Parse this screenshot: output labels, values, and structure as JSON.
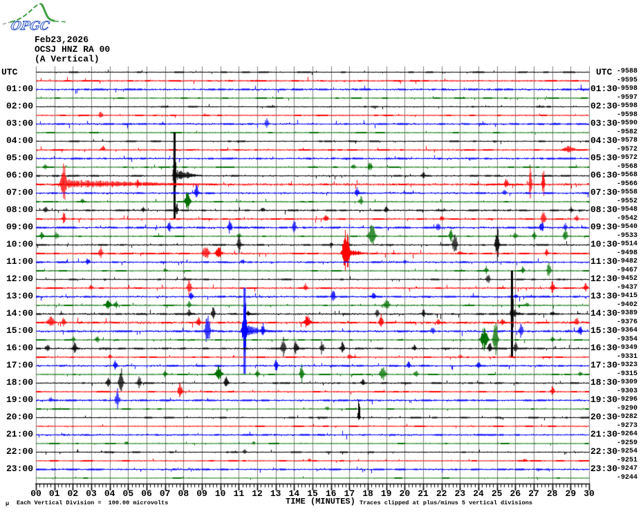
{
  "header": {
    "logo_text": "OPGC",
    "date": "Feb23,2026",
    "station": "OCSJ HNZ RA 00",
    "component": "(A Vertical)"
  },
  "axes": {
    "left_title": "UTC",
    "right_title": "UTC",
    "left_hour_labels": [
      "01:00",
      "02:00",
      "03:00",
      "04:00",
      "05:00",
      "06:00",
      "07:00",
      "08:00",
      "09:00",
      "10:00",
      "11:00",
      "12:00",
      "13:00",
      "14:00",
      "15:00",
      "16:00",
      "17:00",
      "18:00",
      "19:00",
      "20:00",
      "21:00",
      "22:00",
      "23:00"
    ],
    "right_hour_labels": [
      "01:30",
      "02:30",
      "03:30",
      "04:30",
      "05:30",
      "06:30",
      "07:30",
      "08:30",
      "09:30",
      "10:30",
      "11:30",
      "12:30",
      "13:30",
      "14:30",
      "15:30",
      "16:30",
      "17:30",
      "18:30",
      "19:30",
      "20:30",
      "21:30",
      "22:30",
      "23:30"
    ],
    "right_numbers": [
      "-9588",
      "-9595",
      "-9598",
      "-9597",
      "-9598",
      "-9598",
      "-9590",
      "-9582",
      "-9578",
      "-9572",
      "-9572",
      "-9568",
      "-9568",
      "-9566",
      "-9558",
      "-9552",
      "-9548",
      "-9542",
      "-9540",
      "-9533",
      "-9514",
      "-9498",
      "-9482",
      "-9467",
      "-9452",
      "-9437",
      "-9415",
      "-9402",
      "-9389",
      "-9376",
      "-9364",
      "-9354",
      "-9349",
      "-9331",
      "-9323",
      "-9315",
      "-9309",
      "-9303",
      "-9296",
      "-9290",
      "-9282",
      "-9273",
      "-9264",
      "-9259",
      "-9254",
      "-9251",
      "-9247",
      "-9244"
    ],
    "minute_labels": [
      "00",
      "01",
      "02",
      "03",
      "04",
      "05",
      "06",
      "07",
      "08",
      "09",
      "10",
      "11",
      "12",
      "13",
      "14",
      "15",
      "16",
      "17",
      "18",
      "19",
      "20",
      "21",
      "22",
      "23",
      "24",
      "25",
      "26",
      "27",
      "28",
      "29",
      "30"
    ]
  },
  "footer": {
    "micro_mark": "μ",
    "scale_note": "Each Vertical Division =  100.00 microvolts",
    "axis_title": "TIME (MINUTES)",
    "clip_note": "Traces clipped at plus/minus 5 vertical divisions"
  },
  "colors": {
    "black": "#000000",
    "red": "#ff0000",
    "blue": "#0000ff",
    "green": "#007000",
    "grid": "#7f7f7f",
    "background": "#ffffff",
    "logo_green": "#3f9e3f",
    "logo_blue": "#2a50c0"
  },
  "chart_data": {
    "type": "line",
    "title": "24-hour helicorder seismogram, 48 half-hour traces",
    "xlabel": "TIME (MINUTES)",
    "x_range": [
      0,
      30
    ],
    "grid": true,
    "traces_per_hour": 2,
    "color_cycle": [
      "black",
      "red",
      "blue",
      "green"
    ],
    "clip_divisions": 5,
    "microvolts_per_division": 100,
    "event_format": "[minute, amplitude_divisions (neg = upward spike), cluster_halfwidth_min, coda_min]",
    "rows": [
      {
        "start": "00:00",
        "end": "00:30",
        "color": "black",
        "noise": 0.9,
        "events": []
      },
      {
        "start": "00:30",
        "end": "01:00",
        "color": "red",
        "noise": 1.3,
        "events": []
      },
      {
        "start": "01:00",
        "end": "01:30",
        "color": "blue",
        "noise": 1.6,
        "events": []
      },
      {
        "start": "01:30",
        "end": "02:00",
        "color": "green",
        "noise": 0.9,
        "events": []
      },
      {
        "start": "02:00",
        "end": "02:30",
        "color": "black",
        "noise": 1.0,
        "events": []
      },
      {
        "start": "02:30",
        "end": "03:00",
        "color": "red",
        "noise": 1.0,
        "events": [
          [
            3.5,
            0.5
          ]
        ]
      },
      {
        "start": "03:00",
        "end": "03:30",
        "color": "blue",
        "noise": 1.5,
        "events": [
          [
            12.5,
            0.7
          ]
        ]
      },
      {
        "start": "03:30",
        "end": "04:00",
        "color": "green",
        "noise": 0.8,
        "events": []
      },
      {
        "start": "04:00",
        "end": "04:30",
        "color": "black",
        "noise": 1.0,
        "events": []
      },
      {
        "start": "04:30",
        "end": "05:00",
        "color": "red",
        "noise": 1.3,
        "events": [
          [
            3.6,
            -0.55
          ],
          [
            28.9,
            0.55,
            0.5
          ]
        ]
      },
      {
        "start": "05:00",
        "end": "05:30",
        "color": "blue",
        "noise": 1.5,
        "events": []
      },
      {
        "start": "05:30",
        "end": "06:00",
        "color": "green",
        "noise": 0.9,
        "events": [
          [
            0.5,
            0.4
          ],
          [
            7.5,
            0.3
          ],
          [
            17.2,
            0.4
          ],
          [
            18.1,
            0.65
          ]
        ]
      },
      {
        "start": "06:00",
        "end": "06:30",
        "color": "black",
        "noise": 1.2,
        "events": [
          [
            7.5,
            5,
            0.12,
            1.5
          ],
          [
            21,
            0.5
          ]
        ]
      },
      {
        "start": "06:30",
        "end": "07:00",
        "color": "red",
        "noise": 1.8,
        "events": [
          [
            1.5,
            3.6,
            0.25,
            8
          ],
          [
            5.5,
            0.55
          ],
          [
            25.5,
            0.7
          ],
          [
            26.8,
            2.1,
            0.12
          ],
          [
            27.5,
            2.1,
            0.12
          ]
        ]
      },
      {
        "start": "07:00",
        "end": "07:30",
        "color": "blue",
        "noise": 1.6,
        "events": [
          [
            8.7,
            1.0
          ],
          [
            17.4,
            0.65
          ],
          [
            25.4,
            0.55
          ]
        ]
      },
      {
        "start": "07:30",
        "end": "08:00",
        "color": "green",
        "noise": 1.0,
        "events": [
          [
            2.5,
            0.4
          ],
          [
            8.2,
            1.2,
            0.25
          ],
          [
            17.6,
            0.7
          ]
        ]
      },
      {
        "start": "08:00",
        "end": "08:30",
        "color": "black",
        "noise": 1.3,
        "events": [
          [
            0.5,
            0.65
          ],
          [
            5.8,
            0.4
          ],
          [
            7.6,
            1.0
          ],
          [
            12.3,
            0.4
          ],
          [
            19,
            0.5
          ],
          [
            29,
            0.4
          ]
        ]
      },
      {
        "start": "08:30",
        "end": "09:00",
        "color": "red",
        "noise": 1.4,
        "events": [
          [
            1.5,
            0.8
          ],
          [
            15.7,
            0.65
          ],
          [
            22,
            0.4
          ],
          [
            27.5,
            1.3
          ],
          [
            29.3,
            0.5
          ]
        ]
      },
      {
        "start": "09:00",
        "end": "09:30",
        "color": "blue",
        "noise": 1.7,
        "events": [
          [
            7.2,
            0.8
          ],
          [
            10.5,
            1.0
          ],
          [
            14,
            0.8
          ],
          [
            21.8,
            0.7
          ],
          [
            27.4,
            1.0
          ],
          [
            28.7,
            0.55
          ]
        ]
      },
      {
        "start": "09:30",
        "end": "10:00",
        "color": "green",
        "noise": 1.0,
        "events": [
          [
            0.3,
            0.5
          ],
          [
            1.1,
            0.55
          ],
          [
            11,
            0.4
          ],
          [
            18.2,
            1.9,
            0.3
          ],
          [
            22.5,
            0.8
          ],
          [
            26,
            0.55
          ],
          [
            27,
            0.55
          ],
          [
            28.7,
            0.9
          ]
        ]
      },
      {
        "start": "10:00",
        "end": "10:30",
        "color": "black",
        "noise": 1.3,
        "events": [
          [
            11,
            1.1
          ],
          [
            16,
            0.3
          ],
          [
            22.7,
            1.9
          ],
          [
            25,
            2.2
          ]
        ]
      },
      {
        "start": "10:30",
        "end": "11:00",
        "color": "red",
        "noise": 1.5,
        "events": [
          [
            3.5,
            0.8
          ],
          [
            9.2,
            1.0,
            0.3
          ],
          [
            9.9,
            1.0,
            0.3
          ],
          [
            16.8,
            3.8,
            0.3,
            1.2
          ],
          [
            23,
            0.4
          ],
          [
            27.7,
            0.6
          ]
        ]
      },
      {
        "start": "11:00",
        "end": "11:30",
        "color": "blue",
        "noise": 1.5,
        "events": [
          [
            2.8,
            0.55
          ],
          [
            11.2,
            0.4
          ],
          [
            20,
            0.3
          ]
        ]
      },
      {
        "start": "11:30",
        "end": "12:00",
        "color": "green",
        "noise": 0.9,
        "events": [
          [
            7,
            0.3
          ],
          [
            24.4,
            0.65
          ],
          [
            26.4,
            0.5
          ],
          [
            27.8,
            1.0
          ]
        ]
      },
      {
        "start": "12:00",
        "end": "12:30",
        "color": "black",
        "noise": 1.1,
        "events": [
          [
            24.5,
            0.7
          ]
        ]
      },
      {
        "start": "12:30",
        "end": "13:00",
        "color": "red",
        "noise": 1.4,
        "events": [
          [
            3,
            0.4
          ],
          [
            8.3,
            1.4
          ],
          [
            14.6,
            0.55
          ],
          [
            28,
            0.8
          ],
          [
            29.8,
            0.6
          ]
        ]
      },
      {
        "start": "13:00",
        "end": "13:30",
        "color": "blue",
        "noise": 1.6,
        "events": [
          [
            8.4,
            0.55
          ],
          [
            16.1,
            0.8
          ],
          [
            18.3,
            0.55
          ],
          [
            26,
            0.3
          ]
        ]
      },
      {
        "start": "13:30",
        "end": "14:00",
        "color": "green",
        "noise": 1.0,
        "events": [
          [
            3.9,
            0.8,
            0.3
          ],
          [
            4.3,
            0.65
          ],
          [
            8.3,
            0.65
          ],
          [
            19,
            0.7,
            0.3
          ],
          [
            26.6,
            0.4
          ]
        ]
      },
      {
        "start": "14:00",
        "end": "14:30",
        "color": "black",
        "noise": 1.5,
        "events": [
          [
            8.3,
            0.7
          ],
          [
            9.6,
            0.8
          ],
          [
            11.5,
            0.4
          ],
          [
            18.5,
            0.65
          ],
          [
            21,
            0.55
          ],
          [
            25.8,
            5,
            0.12,
            0.5
          ],
          [
            28,
            0.4
          ]
        ]
      },
      {
        "start": "14:30",
        "end": "15:00",
        "color": "red",
        "noise": 1.8,
        "events": [
          [
            0.8,
            0.7,
            0.4
          ],
          [
            1.5,
            0.65
          ],
          [
            8.8,
            0.65
          ],
          [
            14.7,
            1.0,
            0.3
          ],
          [
            18.7,
            1.1
          ],
          [
            21.8,
            0.55
          ],
          [
            25.3,
            0.6
          ],
          [
            29.3,
            0.65
          ]
        ]
      },
      {
        "start": "15:00",
        "end": "15:30",
        "color": "blue",
        "noise": 1.7,
        "events": [
          [
            9.3,
            2.8,
            0.2,
            0.5
          ],
          [
            11.3,
            5,
            0.2,
            1.5
          ],
          [
            12.3,
            1.1
          ],
          [
            21.5,
            0.55
          ],
          [
            26.3,
            1.0
          ],
          [
            29.5,
            1.0
          ]
        ]
      },
      {
        "start": "15:30",
        "end": "16:00",
        "color": "green",
        "noise": 1.0,
        "events": [
          [
            2,
            0.4
          ],
          [
            3.3,
            0.55
          ],
          [
            24.3,
            1.6,
            0.3
          ],
          [
            24.9,
            2.2,
            0.2
          ],
          [
            28,
            0.4
          ]
        ]
      },
      {
        "start": "16:00",
        "end": "16:30",
        "color": "black",
        "noise": 1.4,
        "events": [
          [
            0.6,
            0.7
          ],
          [
            2.1,
            1.0
          ],
          [
            13.4,
            1.6
          ],
          [
            14.1,
            1.3
          ],
          [
            15.5,
            0.9
          ],
          [
            16.6,
            1.0
          ],
          [
            20.5,
            0.5
          ],
          [
            24.6,
            1.1
          ],
          [
            26,
            0.9
          ]
        ]
      },
      {
        "start": "16:30",
        "end": "17:00",
        "color": "red",
        "noise": 1.2,
        "events": [
          [
            4,
            0.3
          ],
          [
            17,
            0.4
          ],
          [
            23,
            0.3
          ]
        ]
      },
      {
        "start": "17:00",
        "end": "17:30",
        "color": "blue",
        "noise": 1.5,
        "events": [
          [
            4.3,
            0.8
          ],
          [
            13,
            0.7
          ],
          [
            20.2,
            0.65
          ],
          [
            24,
            0.5
          ]
        ]
      },
      {
        "start": "17:30",
        "end": "18:00",
        "color": "green",
        "noise": 1.0,
        "events": [
          [
            7,
            0.55
          ],
          [
            9.9,
            1.0,
            0.3
          ],
          [
            12,
            0.65
          ],
          [
            14.4,
            1.3
          ],
          [
            18.8,
            0.9,
            0.3
          ],
          [
            20.6,
            0.65
          ],
          [
            29.5,
            0.4
          ]
        ]
      },
      {
        "start": "18:00",
        "end": "18:30",
        "color": "black",
        "noise": 1.2,
        "events": [
          [
            3.9,
            0.8
          ],
          [
            4.6,
            1.9,
            0.2
          ],
          [
            5.6,
            0.8
          ],
          [
            10.3,
            1.0
          ],
          [
            17.7,
            0.55
          ]
        ]
      },
      {
        "start": "18:30",
        "end": "19:00",
        "color": "red",
        "noise": 1.1,
        "events": [
          [
            7.8,
            1.3
          ],
          [
            28,
            0.7
          ]
        ]
      },
      {
        "start": "19:00",
        "end": "19:30",
        "color": "blue",
        "noise": 1.5,
        "events": [
          [
            0.8,
            0.4
          ],
          [
            4.4,
            1.4
          ]
        ]
      },
      {
        "start": "19:30",
        "end": "20:00",
        "color": "green",
        "noise": 0.8,
        "events": [
          [
            15.8,
            0.3
          ]
        ]
      },
      {
        "start": "20:00",
        "end": "20:30",
        "color": "black",
        "noise": 1.0,
        "events": [
          [
            17.5,
            -3.6,
            0.1
          ]
        ]
      },
      {
        "start": "20:30",
        "end": "21:00",
        "color": "red",
        "noise": 0.9,
        "events": []
      },
      {
        "start": "21:00",
        "end": "21:30",
        "color": "blue",
        "noise": 1.4,
        "events": []
      },
      {
        "start": "21:30",
        "end": "22:00",
        "color": "green",
        "noise": 0.7,
        "events": [
          [
            4.9,
            0.3
          ],
          [
            11.8,
            0.25
          ]
        ]
      },
      {
        "start": "22:00",
        "end": "22:30",
        "color": "black",
        "noise": 1.0,
        "events": [
          [
            11.3,
            0.3
          ]
        ]
      },
      {
        "start": "22:30",
        "end": "23:00",
        "color": "red",
        "noise": 0.9,
        "events": [
          [
            14.8,
            0.25
          ],
          [
            26.5,
            0.25
          ]
        ]
      },
      {
        "start": "23:00",
        "end": "23:30",
        "color": "blue",
        "noise": 1.4,
        "events": []
      },
      {
        "start": "23:30",
        "end": "24:00",
        "color": "green",
        "noise": 0.6,
        "events": []
      }
    ]
  }
}
